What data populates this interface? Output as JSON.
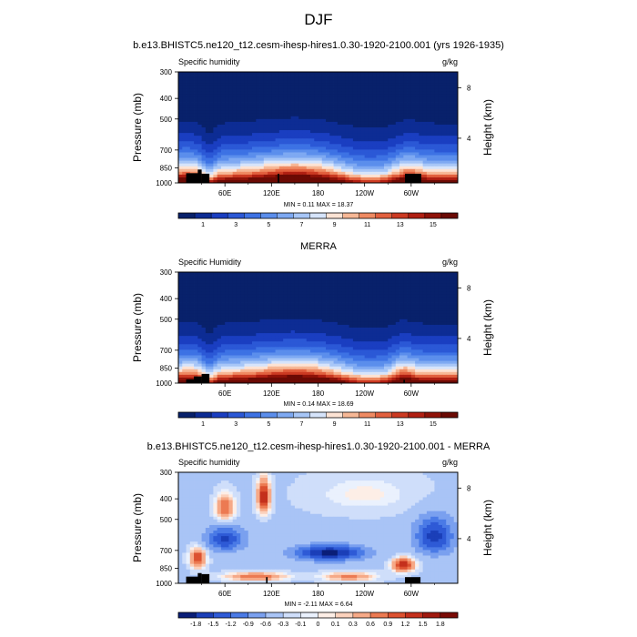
{
  "figure_title": "DJF",
  "panels": [
    {
      "title": "b.e13.BHISTC5.ne120_t12.cesm-ihesp-hires1.0.30-1920-2100.001 (yrs 1926-1935)",
      "left_label": "Specific humidity",
      "right_label": "g/kg",
      "stats": "MIN =   0.11  MAX =  18.37"
    },
    {
      "title": "MERRA",
      "left_label": "Specific Humidity",
      "right_label": "g/kg",
      "stats": "MIN =   0.14  MAX =  18.69"
    },
    {
      "title": "b.e13.BHISTC5.ne120_t12.cesm-ihesp-hires1.0.30-1920-2100.001 - MERRA",
      "left_label": "Specific humidity",
      "right_label": "g/kg",
      "stats": "MIN =  -2.11  MAX =   6.64"
    }
  ],
  "chart_data": [
    {
      "type": "heatmap",
      "title": "b.e13.BHISTC5.ne120_t12.cesm-ihesp-hires1.0.30-1920-2100.001 (yrs 1926-1935)",
      "variable": "Specific humidity",
      "units": "g/kg",
      "xlabel": "",
      "ylabel": "Pressure (mb)",
      "ylabel_right": "Height (km)",
      "x_range": [
        0,
        360
      ],
      "x_ticks": [
        "60E",
        "120E",
        "180",
        "120W",
        "60W"
      ],
      "y_ticks": [
        "300",
        "400",
        "500",
        "700",
        "850",
        "1000"
      ],
      "y_ticks_right": [
        "8",
        "4"
      ],
      "min": 0.11,
      "max": 18.37,
      "colorbar_labels": [
        "1",
        "3",
        "5",
        "7",
        "9",
        "11",
        "13",
        "15"
      ],
      "colorbar_levels": [
        0,
        1,
        2,
        3,
        4,
        5,
        6,
        7,
        8,
        9,
        10,
        11,
        12,
        13,
        14,
        15,
        16
      ]
    },
    {
      "type": "heatmap",
      "title": "MERRA",
      "variable": "Specific Humidity",
      "units": "g/kg",
      "xlabel": "",
      "ylabel": "Pressure (mb)",
      "ylabel_right": "Height (km)",
      "x_range": [
        0,
        360
      ],
      "x_ticks": [
        "60E",
        "120E",
        "180",
        "120W",
        "60W"
      ],
      "y_ticks": [
        "300",
        "400",
        "500",
        "700",
        "850",
        "1000"
      ],
      "y_ticks_right": [
        "8",
        "4"
      ],
      "min": 0.14,
      "max": 18.69,
      "colorbar_labels": [
        "1",
        "3",
        "5",
        "7",
        "9",
        "11",
        "13",
        "15"
      ],
      "colorbar_levels": [
        0,
        1,
        2,
        3,
        4,
        5,
        6,
        7,
        8,
        9,
        10,
        11,
        12,
        13,
        14,
        15,
        16
      ]
    },
    {
      "type": "heatmap",
      "title": "b.e13.BHISTC5.ne120_t12.cesm-ihesp-hires1.0.30-1920-2100.001 - MERRA",
      "variable": "Specific humidity",
      "units": "g/kg",
      "xlabel": "",
      "ylabel": "Pressure (mb)",
      "ylabel_right": "Height (km)",
      "x_range": [
        0,
        360
      ],
      "x_ticks": [
        "60E",
        "120E",
        "180",
        "120W",
        "60W"
      ],
      "y_ticks": [
        "300",
        "400",
        "500",
        "700",
        "850",
        "1000"
      ],
      "y_ticks_right": [
        "8",
        "4"
      ],
      "min": -2.11,
      "max": 6.64,
      "colorbar_labels": [
        "-1.8",
        "-1.5",
        "-1.2",
        "-0.9",
        "-0.6",
        "-0.3",
        "-0.1",
        "0",
        "0.1",
        "0.3",
        "0.6",
        "0.9",
        "1.2",
        "1.5",
        "1.8"
      ]
    }
  ],
  "colors": {
    "seq": [
      "#08216b",
      "#0d2c94",
      "#1a3ec1",
      "#2b58d6",
      "#3d72e4",
      "#5b8eec",
      "#7ea9f2",
      "#a7c6f7",
      "#d6e4fb",
      "#fde3d4",
      "#f7b896",
      "#ef8a62",
      "#e2603e",
      "#cc3a22",
      "#b01f12",
      "#8f1208",
      "#6b0a04"
    ],
    "div": [
      "#0a1e78",
      "#1b3fb8",
      "#2e5ad6",
      "#4a7ae6",
      "#7aa0ef",
      "#a9c4f6",
      "#cfdefa",
      "#eaf1fd",
      "#fdeee6",
      "#fbd1bc",
      "#f6a987",
      "#ec7a52",
      "#dc5130",
      "#c4301c",
      "#a0190e",
      "#7a0a05"
    ],
    "land": "#000000"
  }
}
